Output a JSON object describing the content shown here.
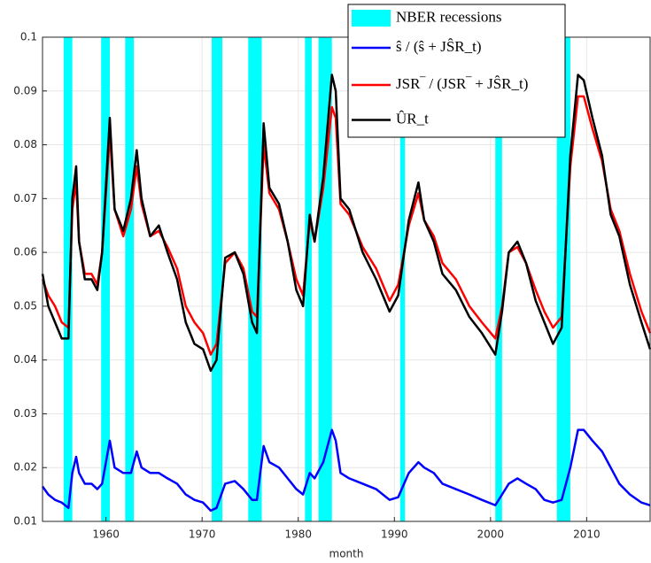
{
  "chart_data": {
    "type": "line",
    "x_label": "month",
    "xlim": [
      1953.4,
      2016.6
    ],
    "xticks": [
      1960,
      1970,
      1980,
      1990,
      2000,
      2010
    ],
    "ylim": [
      0.01,
      0.1
    ],
    "yticks": [
      0.01,
      0.02,
      0.03,
      0.04,
      0.05,
      0.06,
      0.07,
      0.08,
      0.09,
      0.1
    ],
    "grid": true,
    "legend_position": "top",
    "recessions": {
      "name": "NBER recessions",
      "color": "#00ffff",
      "spans": [
        [
          1955.6,
          1956.5
        ],
        [
          1959.5,
          1960.4
        ],
        [
          1962.0,
          1962.9
        ],
        [
          1971.0,
          1972.1
        ],
        [
          1974.8,
          1976.2
        ],
        [
          1980.7,
          1981.4
        ],
        [
          1982.1,
          1983.5
        ],
        [
          1990.6,
          1991.1
        ],
        [
          2000.5,
          2001.2
        ],
        [
          2006.9,
          2008.3
        ]
      ]
    },
    "x": [
      1953.4,
      1954.0,
      1954.7,
      1955.4,
      1956.1,
      1956.5,
      1956.9,
      1957.2,
      1957.8,
      1958.5,
      1959.1,
      1959.6,
      1960.4,
      1960.9,
      1961.8,
      1962.6,
      1963.2,
      1963.7,
      1964.6,
      1965.5,
      1966.4,
      1967.4,
      1968.3,
      1969.2,
      1970.1,
      1970.9,
      1971.5,
      1972.4,
      1973.4,
      1974.3,
      1975.2,
      1975.7,
      1976.4,
      1977.0,
      1978.0,
      1978.9,
      1979.8,
      1980.5,
      1981.2,
      1981.7,
      1982.6,
      1983.5,
      1983.9,
      1984.4,
      1985.3,
      1986.7,
      1988.1,
      1989.5,
      1990.4,
      1991.5,
      1992.5,
      1993.1,
      1994.1,
      1995.0,
      1996.4,
      1997.8,
      1999.1,
      2000.5,
      2001.2,
      2001.9,
      2002.8,
      2003.7,
      2004.7,
      2005.6,
      2006.5,
      2007.4,
      2008.3,
      2009.1,
      2009.7,
      2010.6,
      2011.6,
      2012.5,
      2013.4,
      2014.5,
      2015.7,
      2016.6
    ],
    "series": [
      {
        "name": "ŝ / (ŝ + JŜR_t)",
        "color": "#0000ff",
        "values": [
          0.0165,
          0.015,
          0.014,
          0.0135,
          0.0125,
          0.019,
          0.022,
          0.019,
          0.017,
          0.017,
          0.016,
          0.017,
          0.025,
          0.02,
          0.019,
          0.019,
          0.023,
          0.02,
          0.019,
          0.019,
          0.018,
          0.017,
          0.015,
          0.014,
          0.0135,
          0.012,
          0.0125,
          0.017,
          0.0175,
          0.016,
          0.014,
          0.014,
          0.024,
          0.021,
          0.02,
          0.018,
          0.016,
          0.015,
          0.019,
          0.018,
          0.021,
          0.027,
          0.025,
          0.019,
          0.018,
          0.017,
          0.016,
          0.014,
          0.0145,
          0.019,
          0.021,
          0.02,
          0.019,
          0.017,
          0.016,
          0.015,
          0.014,
          0.013,
          0.015,
          0.017,
          0.018,
          0.017,
          0.016,
          0.014,
          0.0135,
          0.014,
          0.02,
          0.027,
          0.027,
          0.025,
          0.023,
          0.02,
          0.017,
          0.015,
          0.0135,
          0.013
        ]
      },
      {
        "name": "JSR‾ / (JSR‾ + JŜR_t)",
        "color": "#ff0000",
        "values": [
          0.055,
          0.052,
          0.05,
          0.047,
          0.046,
          0.068,
          0.073,
          0.062,
          0.056,
          0.056,
          0.054,
          0.06,
          0.082,
          0.068,
          0.063,
          0.068,
          0.076,
          0.069,
          0.063,
          0.064,
          0.061,
          0.057,
          0.05,
          0.047,
          0.045,
          0.041,
          0.043,
          0.058,
          0.06,
          0.057,
          0.049,
          0.048,
          0.08,
          0.071,
          0.068,
          0.062,
          0.055,
          0.052,
          0.066,
          0.062,
          0.072,
          0.087,
          0.085,
          0.069,
          0.067,
          0.061,
          0.057,
          0.051,
          0.054,
          0.065,
          0.071,
          0.066,
          0.063,
          0.058,
          0.055,
          0.05,
          0.047,
          0.044,
          0.05,
          0.06,
          0.061,
          0.058,
          0.053,
          0.049,
          0.046,
          0.048,
          0.076,
          0.089,
          0.089,
          0.083,
          0.077,
          0.068,
          0.064,
          0.056,
          0.049,
          0.045
        ]
      },
      {
        "name": "ÛR_t",
        "color": "#000000",
        "values": [
          0.056,
          0.05,
          0.047,
          0.044,
          0.044,
          0.07,
          0.076,
          0.062,
          0.055,
          0.055,
          0.053,
          0.06,
          0.085,
          0.068,
          0.064,
          0.07,
          0.079,
          0.07,
          0.063,
          0.065,
          0.06,
          0.055,
          0.047,
          0.043,
          0.042,
          0.038,
          0.04,
          0.059,
          0.06,
          0.056,
          0.047,
          0.045,
          0.084,
          0.072,
          0.069,
          0.062,
          0.053,
          0.05,
          0.067,
          0.062,
          0.074,
          0.093,
          0.09,
          0.07,
          0.068,
          0.06,
          0.055,
          0.049,
          0.052,
          0.066,
          0.073,
          0.066,
          0.062,
          0.056,
          0.053,
          0.048,
          0.045,
          0.041,
          0.049,
          0.06,
          0.062,
          0.058,
          0.051,
          0.047,
          0.043,
          0.046,
          0.078,
          0.093,
          0.092,
          0.085,
          0.078,
          0.067,
          0.063,
          0.054,
          0.047,
          0.042
        ]
      }
    ]
  }
}
